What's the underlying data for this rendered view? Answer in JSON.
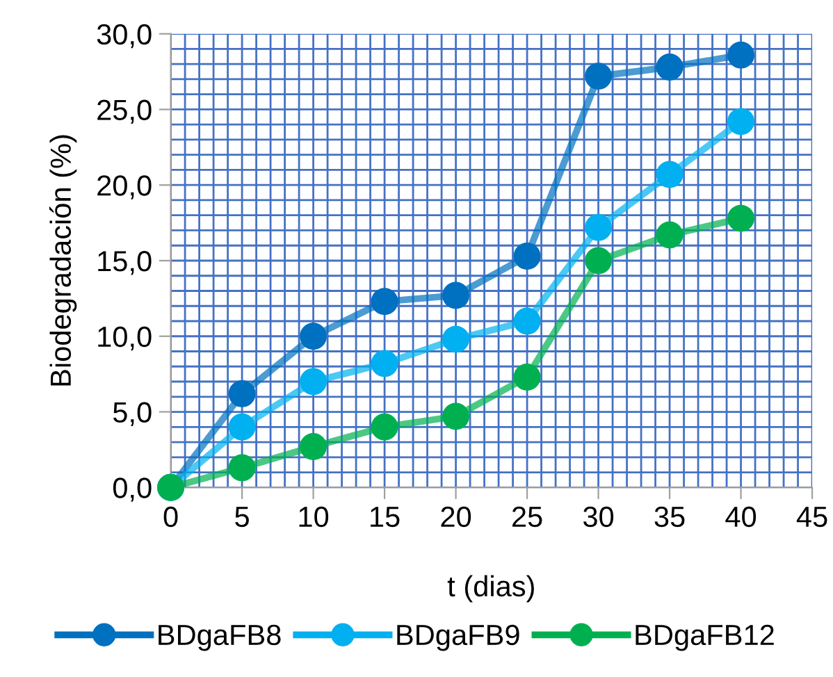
{
  "chart_data": {
    "type": "line",
    "xlabel": "t (dias)",
    "ylabel": "Biodegradación (%)",
    "x": [
      0,
      5,
      10,
      15,
      20,
      25,
      30,
      35,
      40
    ],
    "series": [
      {
        "name": "BDgaFB8",
        "color": "#0070c0",
        "values": [
          0,
          6.2,
          10.0,
          12.3,
          12.7,
          15.3,
          27.2,
          27.8,
          28.6
        ]
      },
      {
        "name": "BDgaFB9",
        "color": "#00b0f0",
        "values": [
          0,
          4.0,
          7.0,
          8.2,
          9.8,
          11.0,
          17.2,
          20.7,
          24.2
        ]
      },
      {
        "name": "BDgaFB12",
        "color": "#00b050",
        "values": [
          0,
          1.3,
          2.7,
          4.0,
          4.7,
          7.3,
          15.0,
          16.7,
          17.8
        ]
      }
    ],
    "xlim": [
      0,
      45
    ],
    "xticks": [
      0,
      5,
      10,
      15,
      20,
      25,
      30,
      35,
      40,
      45
    ],
    "ylim": [
      0,
      30
    ],
    "yticks": [
      {
        "value": 0,
        "label": "0,0"
      },
      {
        "value": 5,
        "label": "5,0"
      },
      {
        "value": 10,
        "label": "10,0"
      },
      {
        "value": 15,
        "label": "15,0"
      },
      {
        "value": 20,
        "label": "20,0"
      },
      {
        "value": 25,
        "label": "25,0"
      },
      {
        "value": 30,
        "label": "30,0"
      }
    ],
    "grid": true,
    "legend": "bottom",
    "marker": "circle",
    "line_style": "solid"
  }
}
